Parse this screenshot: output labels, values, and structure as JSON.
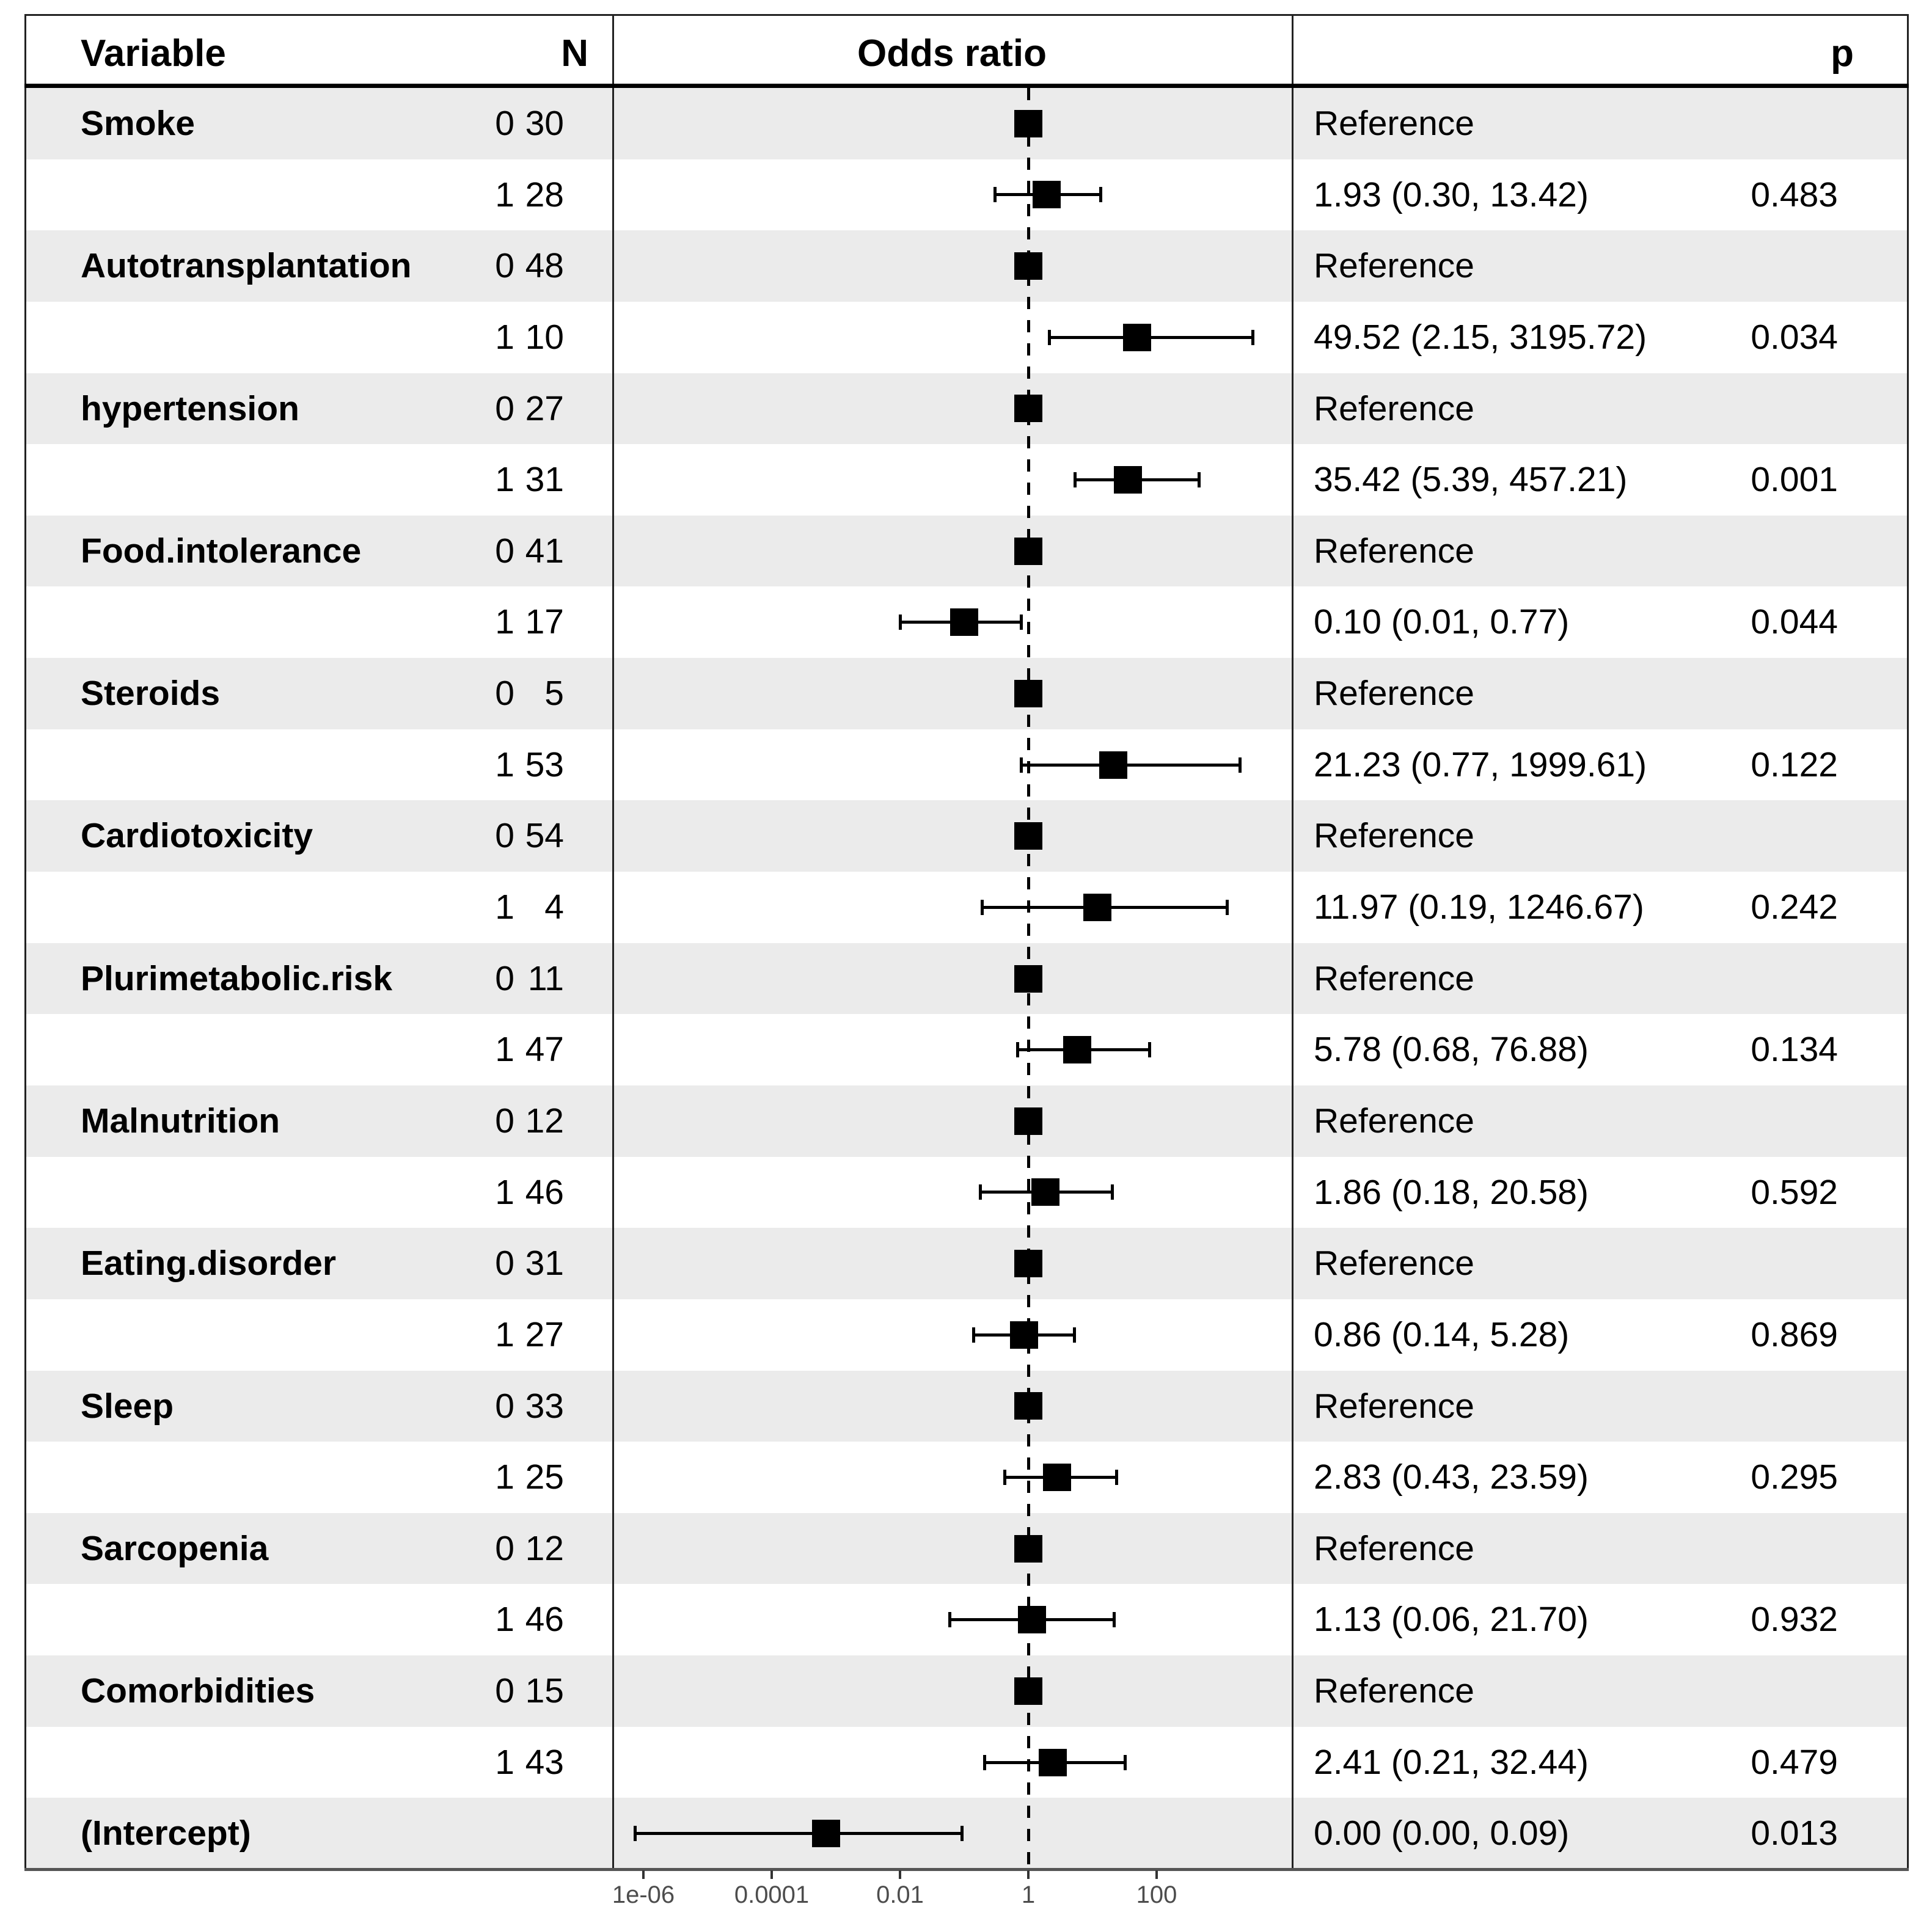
{
  "header": {
    "variable": "Variable",
    "n": "N",
    "odds_ratio": "Odds ratio",
    "p": "p"
  },
  "reference_label": "Reference",
  "colors": {
    "stripe": "#ebebeb",
    "row_alt": "#ffffff",
    "marker": "#000000",
    "border": "#222222",
    "header_rule": "#000000",
    "axis_line": "#555555",
    "axis_text": "#4d4d4d"
  },
  "axis": {
    "scale": "log10",
    "ticks": [
      {
        "label": "1e-06",
        "value": 1e-06
      },
      {
        "label": "0.0001",
        "value": 0.0001
      },
      {
        "label": "0.01",
        "value": 0.01
      },
      {
        "label": "1",
        "value": 1
      },
      {
        "label": "100",
        "value": 100
      }
    ]
  },
  "chart_data": {
    "type": "forest",
    "title": "Odds ratio",
    "x_scale": "log10",
    "xlim": [
      4e-07,
      10000
    ],
    "reference_line": 1,
    "rows": [
      {
        "variable": "Smoke",
        "level": "0",
        "n": "30",
        "estimate_label": "Reference",
        "p": "",
        "or": 1,
        "ci_low": null,
        "ci_high": null,
        "is_reference": true
      },
      {
        "variable": "",
        "level": "1",
        "n": "28",
        "estimate_label": "1.93 (0.30, 13.42)",
        "p": "0.483",
        "or": 1.93,
        "ci_low": 0.3,
        "ci_high": 13.42,
        "is_reference": false
      },
      {
        "variable": "Autotransplantation",
        "level": "0",
        "n": "48",
        "estimate_label": "Reference",
        "p": "",
        "or": 1,
        "ci_low": null,
        "ci_high": null,
        "is_reference": true
      },
      {
        "variable": "",
        "level": "1",
        "n": "10",
        "estimate_label": "49.52 (2.15, 3195.72)",
        "p": "0.034",
        "or": 49.52,
        "ci_low": 2.15,
        "ci_high": 3195.72,
        "is_reference": false
      },
      {
        "variable": "hypertension",
        "level": "0",
        "n": "27",
        "estimate_label": "Reference",
        "p": "",
        "or": 1,
        "ci_low": null,
        "ci_high": null,
        "is_reference": true
      },
      {
        "variable": "",
        "level": "1",
        "n": "31",
        "estimate_label": "35.42 (5.39, 457.21)",
        "p": "0.001",
        "or": 35.42,
        "ci_low": 5.39,
        "ci_high": 457.21,
        "is_reference": false
      },
      {
        "variable": "Food.intolerance",
        "level": "0",
        "n": "41",
        "estimate_label": "Reference",
        "p": "",
        "or": 1,
        "ci_low": null,
        "ci_high": null,
        "is_reference": true
      },
      {
        "variable": "",
        "level": "1",
        "n": "17",
        "estimate_label": "0.10 (0.01, 0.77)",
        "p": "0.044",
        "or": 0.1,
        "ci_low": 0.01,
        "ci_high": 0.77,
        "is_reference": false
      },
      {
        "variable": "Steroids",
        "level": "0",
        "n": "5",
        "estimate_label": "Reference",
        "p": "",
        "or": 1,
        "ci_low": null,
        "ci_high": null,
        "is_reference": true
      },
      {
        "variable": "",
        "level": "1",
        "n": "53",
        "estimate_label": "21.23 (0.77, 1999.61)",
        "p": "0.122",
        "or": 21.23,
        "ci_low": 0.77,
        "ci_high": 1999.61,
        "is_reference": false
      },
      {
        "variable": "Cardiotoxicity",
        "level": "0",
        "n": "54",
        "estimate_label": "Reference",
        "p": "",
        "or": 1,
        "ci_low": null,
        "ci_high": null,
        "is_reference": true
      },
      {
        "variable": "",
        "level": "1",
        "n": "4",
        "estimate_label": "11.97 (0.19, 1246.67)",
        "p": "0.242",
        "or": 11.97,
        "ci_low": 0.19,
        "ci_high": 1246.67,
        "is_reference": false
      },
      {
        "variable": "Plurimetabolic.risk",
        "level": "0",
        "n": "11",
        "estimate_label": "Reference",
        "p": "",
        "or": 1,
        "ci_low": null,
        "ci_high": null,
        "is_reference": true
      },
      {
        "variable": "",
        "level": "1",
        "n": "47",
        "estimate_label": "5.78 (0.68, 76.88)",
        "p": "0.134",
        "or": 5.78,
        "ci_low": 0.68,
        "ci_high": 76.88,
        "is_reference": false
      },
      {
        "variable": "Malnutrition",
        "level": "0",
        "n": "12",
        "estimate_label": "Reference",
        "p": "",
        "or": 1,
        "ci_low": null,
        "ci_high": null,
        "is_reference": true
      },
      {
        "variable": "",
        "level": "1",
        "n": "46",
        "estimate_label": "1.86 (0.18, 20.58)",
        "p": "0.592",
        "or": 1.86,
        "ci_low": 0.18,
        "ci_high": 20.58,
        "is_reference": false
      },
      {
        "variable": "Eating.disorder",
        "level": "0",
        "n": "31",
        "estimate_label": "Reference",
        "p": "",
        "or": 1,
        "ci_low": null,
        "ci_high": null,
        "is_reference": true
      },
      {
        "variable": "",
        "level": "1",
        "n": "27",
        "estimate_label": "0.86 (0.14, 5.28)",
        "p": "0.869",
        "or": 0.86,
        "ci_low": 0.14,
        "ci_high": 5.28,
        "is_reference": false
      },
      {
        "variable": "Sleep",
        "level": "0",
        "n": "33",
        "estimate_label": "Reference",
        "p": "",
        "or": 1,
        "ci_low": null,
        "ci_high": null,
        "is_reference": true
      },
      {
        "variable": "",
        "level": "1",
        "n": "25",
        "estimate_label": "2.83 (0.43, 23.59)",
        "p": "0.295",
        "or": 2.83,
        "ci_low": 0.43,
        "ci_high": 23.59,
        "is_reference": false
      },
      {
        "variable": "Sarcopenia",
        "level": "0",
        "n": "12",
        "estimate_label": "Reference",
        "p": "",
        "or": 1,
        "ci_low": null,
        "ci_high": null,
        "is_reference": true
      },
      {
        "variable": "",
        "level": "1",
        "n": "46",
        "estimate_label": "1.13 (0.06, 21.70)",
        "p": "0.932",
        "or": 1.13,
        "ci_low": 0.06,
        "ci_high": 21.7,
        "is_reference": false
      },
      {
        "variable": "Comorbidities",
        "level": "0",
        "n": "15",
        "estimate_label": "Reference",
        "p": "",
        "or": 1,
        "ci_low": null,
        "ci_high": null,
        "is_reference": true
      },
      {
        "variable": "",
        "level": "1",
        "n": "43",
        "estimate_label": "2.41 (0.21, 32.44)",
        "p": "0.479",
        "or": 2.41,
        "ci_low": 0.21,
        "ci_high": 32.44,
        "is_reference": false
      },
      {
        "variable": "(Intercept)",
        "level": "",
        "n": "",
        "estimate_label": "0.00 (0.00, 0.09)",
        "p": "0.013",
        "or": 0.0007,
        "ci_low": 7.5e-07,
        "ci_high": 0.093,
        "is_reference": false
      }
    ]
  }
}
